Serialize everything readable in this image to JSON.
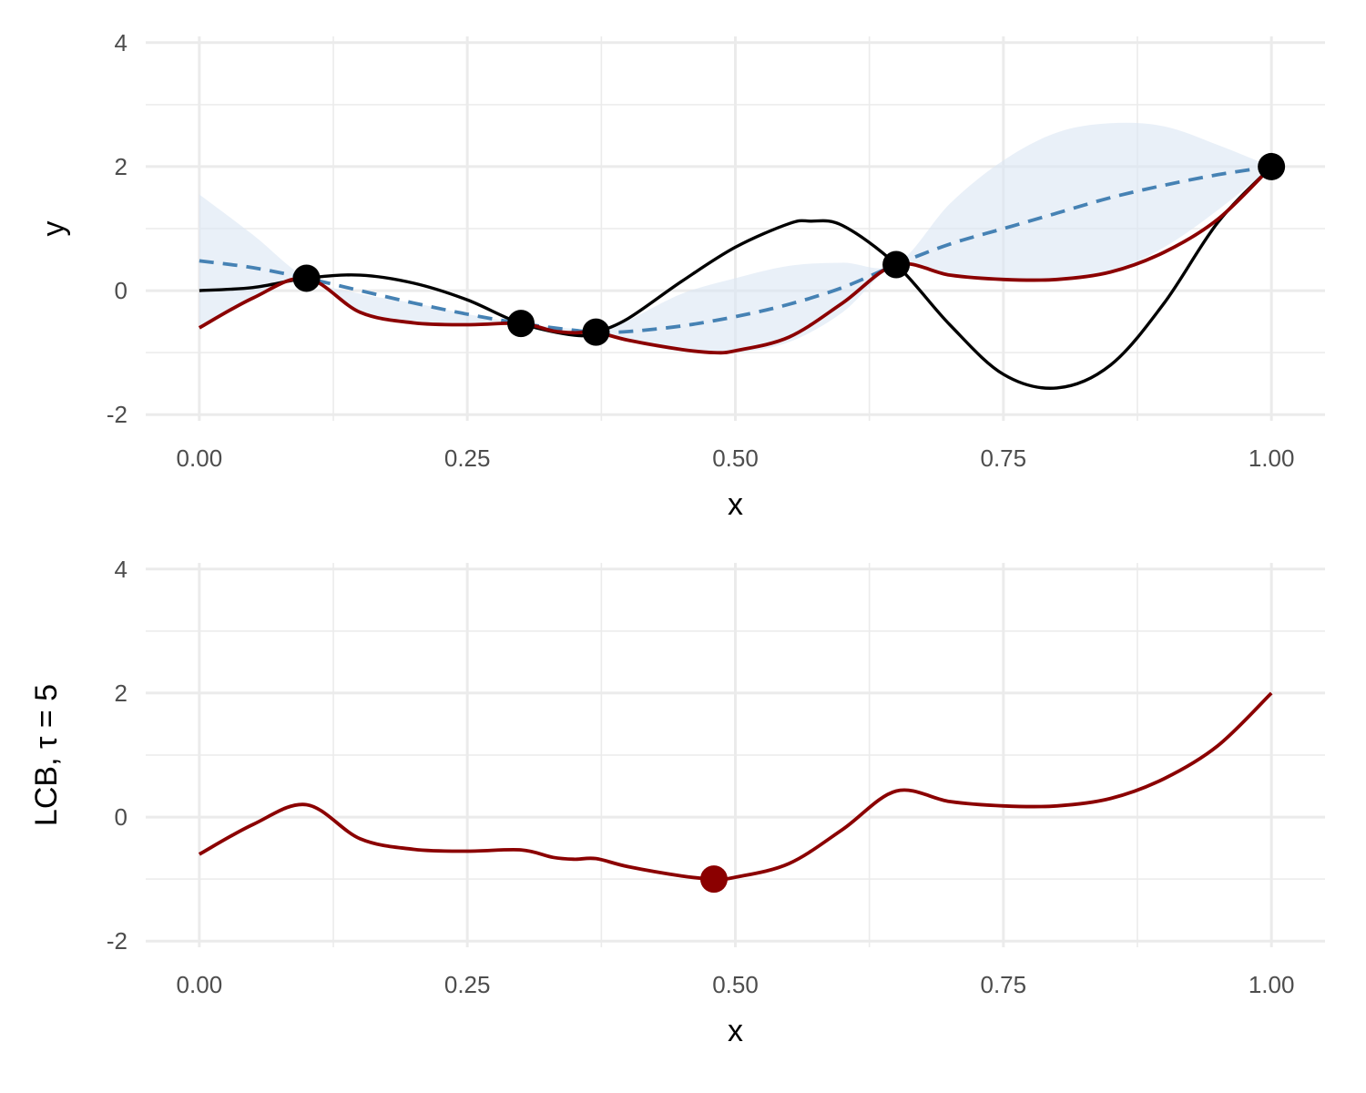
{
  "chart_data": [
    {
      "type": "line",
      "title": "",
      "xlabel": "x",
      "ylabel": "y",
      "xlim": [
        -0.05,
        1.05
      ],
      "ylim": [
        -2.1,
        4.1
      ],
      "x_ticks": [
        "0.00",
        "0.25",
        "0.50",
        "0.75",
        "1.00"
      ],
      "x_tick_values": [
        0,
        0.25,
        0.5,
        0.75,
        1
      ],
      "y_ticks": [
        "-2",
        "0",
        "2",
        "4"
      ],
      "y_tick_values": [
        -2,
        0,
        2,
        4
      ],
      "grid": true,
      "colors": {
        "true_function": "#000000",
        "gp_mean": "#4682b4",
        "band": "#dbe6f4",
        "lcb": "#8b0000",
        "observations": "#000000"
      },
      "observations": {
        "x": [
          0.1,
          0.3,
          0.37,
          0.65,
          1.0
        ],
        "y": [
          0.2,
          -0.53,
          -0.67,
          0.42,
          2.0
        ]
      },
      "series": [
        {
          "kind": "true-function",
          "x": [
            0.0,
            0.05,
            0.1,
            0.15,
            0.2,
            0.25,
            0.3,
            0.35,
            0.37,
            0.4,
            0.45,
            0.5,
            0.55,
            0.57,
            0.6,
            0.65,
            0.7,
            0.75,
            0.8,
            0.85,
            0.9,
            0.95,
            1.0
          ],
          "y": [
            0.0,
            0.05,
            0.2,
            0.25,
            0.12,
            -0.15,
            -0.53,
            -0.72,
            -0.67,
            -0.45,
            0.15,
            0.7,
            1.08,
            1.12,
            1.05,
            0.42,
            -0.55,
            -1.35,
            -1.57,
            -1.2,
            -0.2,
            1.1,
            2.0
          ]
        },
        {
          "kind": "gp-mean",
          "x": [
            0.0,
            0.05,
            0.1,
            0.15,
            0.2,
            0.25,
            0.3,
            0.35,
            0.37,
            0.4,
            0.45,
            0.5,
            0.55,
            0.6,
            0.65,
            0.7,
            0.75,
            0.8,
            0.85,
            0.9,
            0.95,
            1.0
          ],
          "y": [
            0.48,
            0.37,
            0.2,
            0.0,
            -0.2,
            -0.38,
            -0.53,
            -0.64,
            -0.67,
            -0.66,
            -0.57,
            -0.42,
            -0.22,
            0.05,
            0.42,
            0.75,
            1.0,
            1.25,
            1.5,
            1.7,
            1.87,
            2.0
          ]
        },
        {
          "kind": "band-upper",
          "x": [
            0.0,
            0.05,
            0.1,
            0.15,
            0.2,
            0.25,
            0.3,
            0.35,
            0.37,
            0.4,
            0.45,
            0.5,
            0.55,
            0.6,
            0.65,
            0.7,
            0.75,
            0.8,
            0.85,
            0.9,
            0.95,
            1.0
          ],
          "y": [
            1.55,
            0.9,
            0.2,
            -0.05,
            -0.2,
            -0.38,
            -0.53,
            -0.62,
            -0.67,
            -0.48,
            -0.05,
            0.2,
            0.4,
            0.45,
            0.42,
            1.4,
            2.1,
            2.55,
            2.7,
            2.65,
            2.35,
            2.0
          ]
        },
        {
          "kind": "band-lower",
          "x": [
            0.0,
            0.05,
            0.1,
            0.15,
            0.2,
            0.25,
            0.3,
            0.35,
            0.37,
            0.4,
            0.45,
            0.5,
            0.55,
            0.6,
            0.65,
            0.7,
            0.75,
            0.8,
            0.85,
            0.9,
            0.95,
            1.0
          ],
          "y": [
            -0.6,
            -0.12,
            0.2,
            -0.35,
            -0.52,
            -0.55,
            -0.53,
            -0.68,
            -0.67,
            -0.83,
            -0.98,
            -1.0,
            -0.83,
            -0.35,
            0.42,
            0.25,
            0.18,
            0.18,
            0.3,
            0.7,
            1.3,
            2.0
          ]
        },
        {
          "kind": "lcb",
          "x": [
            0.0,
            0.05,
            0.1,
            0.15,
            0.2,
            0.25,
            0.3,
            0.33,
            0.35,
            0.37,
            0.4,
            0.45,
            0.48,
            0.5,
            0.55,
            0.6,
            0.65,
            0.7,
            0.75,
            0.8,
            0.85,
            0.9,
            0.95,
            1.0
          ],
          "y": [
            -0.6,
            -0.12,
            0.2,
            -0.35,
            -0.52,
            -0.55,
            -0.53,
            -0.65,
            -0.68,
            -0.67,
            -0.8,
            -0.95,
            -1.0,
            -0.97,
            -0.75,
            -0.2,
            0.42,
            0.25,
            0.18,
            0.18,
            0.3,
            0.62,
            1.15,
            2.0
          ]
        }
      ]
    },
    {
      "type": "line",
      "title": "",
      "xlabel": "x",
      "ylabel": "LCB, τ = 5",
      "xlim": [
        -0.05,
        1.05
      ],
      "ylim": [
        -2.1,
        4.1
      ],
      "x_ticks": [
        "0.00",
        "0.25",
        "0.50",
        "0.75",
        "1.00"
      ],
      "x_tick_values": [
        0,
        0.25,
        0.5,
        0.75,
        1
      ],
      "y_ticks": [
        "-2",
        "0",
        "2",
        "4"
      ],
      "y_tick_values": [
        -2,
        0,
        2,
        4
      ],
      "grid": true,
      "colors": {
        "lcb": "#8b0000",
        "minimum": "#8b0000"
      },
      "minimum_point": {
        "x": 0.48,
        "y": -1.0
      },
      "series": [
        {
          "kind": "lcb",
          "x": [
            0.0,
            0.05,
            0.1,
            0.15,
            0.2,
            0.25,
            0.3,
            0.33,
            0.35,
            0.37,
            0.4,
            0.45,
            0.48,
            0.5,
            0.55,
            0.6,
            0.65,
            0.7,
            0.75,
            0.8,
            0.85,
            0.9,
            0.95,
            1.0
          ],
          "y": [
            -0.6,
            -0.12,
            0.2,
            -0.35,
            -0.52,
            -0.55,
            -0.53,
            -0.65,
            -0.68,
            -0.67,
            -0.8,
            -0.95,
            -1.0,
            -0.97,
            -0.75,
            -0.2,
            0.42,
            0.25,
            0.18,
            0.18,
            0.3,
            0.62,
            1.15,
            2.0
          ]
        }
      ]
    }
  ]
}
